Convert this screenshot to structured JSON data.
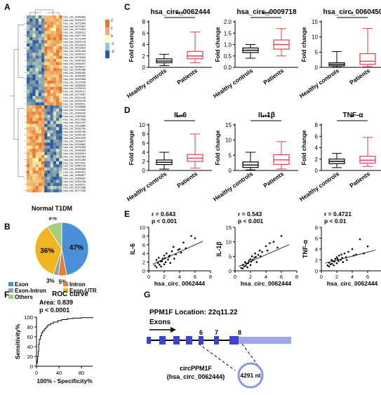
{
  "panels": {
    "A": {
      "label": "A",
      "rows": [
        "hsa_circ_0045482",
        "hsa_circ_0026474",
        "hsa_circ_0072549",
        "hsa_circ_0072387",
        "hsa_circ_0073340",
        "hsa_circ_0035012",
        "hsa_circ_0007760",
        "hsa_circ_0072444",
        "hsa_circ_0009718",
        "hsa_circ_0024876",
        "hsa_circ_0013422",
        "hsa_circ_0062444",
        "hsa_circ_0000231",
        "hsa_circ_0078549",
        "hsa_circ_0000324",
        "hsa_circ_0064457",
        "hsa_circ_0008127",
        "hsa_circ_0000186",
        "hsa_circ_0066450",
        "hsa_circ_0006455",
        "hsa_circ_0002565",
        "hsa_circ_0012208",
        "hsa_circ_0066828",
        "hsa_circ_0026191",
        "hsa_circ_0004127",
        "hsa_circ_0073067",
        "hsa_circ_0097105",
        "hsa_circ_0005130",
        "hsa_circ_0006511",
        "hsa_circ_0034868",
        "hsa_circ_0043469",
        "hsa_circ_0068702",
        "hsa_circ_0080826",
        "hsa_circ_0017556",
        "hsa_circ_0044767",
        "hsa_circ_0023669",
        "hsa_circ_0032759",
        "hsa_circ_0098765",
        "hsa_circ_0048736",
        "hsa_circ_0062250",
        "hsa_circ_0009870",
        "hsa_circ_0099862",
        "hsa_circ_0035409",
        "hsa_circ_0006345",
        "hsa_circ_0048301",
        "hsa_circ_0062784",
        "hsa_circ_0092285",
        "hsa_circ_0017637",
        "hsa_circ_0060125",
        "hsa_circ_0084566",
        "hsa_circ_0065321",
        "hsa_circ_0056827",
        "hsa_circ_0088087",
        "hsa_circ_0054236",
        "hsa_circ_0026371",
        "hsa_circ_0012286",
        "hsa_circ_0077300"
      ],
      "scale": [
        "2",
        "1",
        "0",
        "-1",
        "-2"
      ],
      "footer": "Normal T1DM",
      "colors": {
        "high": "#e8772e",
        "mid": "#ffffbf",
        "low": "#2c5aa0"
      }
    },
    "B": {
      "label": "B",
      "slices": [
        {
          "name": "Exon",
          "pct": 47,
          "label": "47%",
          "color": "#4a90d9"
        },
        {
          "name": "Intron",
          "pct": 5,
          "label": "5%",
          "color": "#e2803a"
        },
        {
          "name": "Exon-Intron",
          "pct": 3,
          "label": "3%",
          "color": "#8aa0b0"
        },
        {
          "name": "Exon-UTR",
          "pct": 36,
          "label": "36%",
          "color": "#f2b522"
        },
        {
          "name": "Others",
          "pct": 9,
          "label": "9%",
          "color": "#a5cd7e"
        }
      ]
    },
    "C": {
      "label": "C",
      "ylabel": "Fold change",
      "xcats": [
        "Healthy controls",
        "Patients"
      ],
      "plots": [
        {
          "title": "hsa_circ_0062444",
          "sig": "***",
          "yticks": [
            "0",
            "2",
            "4",
            "6",
            "8"
          ],
          "ymax": 8,
          "healthy": {
            "min": 0.3,
            "q1": 0.8,
            "med": 1.1,
            "q3": 1.5,
            "max": 2.3
          },
          "patients": {
            "min": 0.8,
            "q1": 1.5,
            "med": 2.0,
            "q3": 2.8,
            "max": 6.2
          }
        },
        {
          "title": "hsa_circ_0009718",
          "sig": "***",
          "yticks": [
            "0.0",
            "0.5",
            "1.0",
            "1.5",
            "2.0"
          ],
          "ymax": 2,
          "healthy": {
            "min": 0.4,
            "q1": 0.65,
            "med": 0.75,
            "q3": 0.85,
            "max": 1.0
          },
          "patients": {
            "min": 0.5,
            "q1": 0.8,
            "med": 1.0,
            "q3": 1.2,
            "max": 1.7
          }
        },
        {
          "title": "hsa_circ_0060450",
          "sig": "*",
          "yticks": [
            "0",
            "5",
            "10",
            "15"
          ],
          "ymax": 15,
          "healthy": {
            "min": 0.1,
            "q1": 0.5,
            "med": 1.0,
            "q3": 1.5,
            "max": 5.2
          },
          "patients": {
            "min": 0.2,
            "q1": 1.0,
            "med": 2.0,
            "q3": 4.5,
            "max": 12.8
          }
        }
      ]
    },
    "D": {
      "label": "D",
      "ylabel": "Fold change",
      "xcats": [
        "Healthy controls",
        "Patients"
      ],
      "plots": [
        {
          "title": "IL-6",
          "sig": "***",
          "yticks": [
            "0",
            "2",
            "4",
            "6",
            "8",
            "10"
          ],
          "ymax": 10,
          "healthy": {
            "min": 0.3,
            "q1": 1.3,
            "med": 1.8,
            "q3": 2.3,
            "max": 4.0
          },
          "patients": {
            "min": 0.5,
            "q1": 2.0,
            "med": 2.7,
            "q3": 3.5,
            "max": 8.0
          }
        },
        {
          "title": "IL-1β",
          "sig": "***",
          "yticks": [
            "0",
            "5",
            "10",
            "15"
          ],
          "ymax": 15,
          "healthy": {
            "min": 0.2,
            "q1": 1.0,
            "med": 1.8,
            "q3": 2.8,
            "max": 6.0
          },
          "patients": {
            "min": 0.5,
            "q1": 2.0,
            "med": 3.5,
            "q3": 5.2,
            "max": 9.5
          }
        },
        {
          "title": "TNF-α",
          "sig": "*",
          "yticks": [
            "0",
            "2",
            "4",
            "6",
            "8"
          ],
          "ymax": 8,
          "healthy": {
            "min": 0.5,
            "q1": 1.2,
            "med": 1.6,
            "q3": 2.0,
            "max": 3.0
          },
          "patients": {
            "min": 0.7,
            "q1": 1.3,
            "med": 1.8,
            "q3": 2.5,
            "max": 5.8
          }
        }
      ]
    },
    "E": {
      "label": "E",
      "xlabel": "hsa_circ_0062444",
      "plots": [
        {
          "ylabel": "IL-6",
          "r": "r = 0.643",
          "p": "p < 0.001",
          "xticks": [
            "0",
            "2",
            "4",
            "6",
            "8"
          ],
          "xmax": 8,
          "yticks": [
            "0",
            "2",
            "4",
            "6",
            "8",
            "10"
          ],
          "ymax": 10,
          "line": [
            [
              0.5,
              1.5
            ],
            [
              7,
              6.8
            ]
          ],
          "points": [
            [
              0.8,
              1.2
            ],
            [
              1,
              2.5
            ],
            [
              1.2,
              1.8
            ],
            [
              1.3,
              3.0
            ],
            [
              1.5,
              2.2
            ],
            [
              1.6,
              1.0
            ],
            [
              1.8,
              2.8
            ],
            [
              2,
              3.5
            ],
            [
              2,
              1.5
            ],
            [
              2.2,
              2.0
            ],
            [
              2.3,
              4.0
            ],
            [
              2.5,
              2.6
            ],
            [
              2.6,
              3.2
            ],
            [
              2.8,
              1.8
            ],
            [
              3,
              4.5
            ],
            [
              3.2,
              5.5
            ],
            [
              3.5,
              3.8
            ],
            [
              4,
              5.0
            ],
            [
              4.2,
              4.2
            ],
            [
              4.5,
              6.5
            ],
            [
              4.8,
              5.2
            ],
            [
              5.5,
              8.0
            ],
            [
              6,
              7.5
            ],
            [
              1,
              0.8
            ],
            [
              1.4,
              1.4
            ],
            [
              1.7,
              2.2
            ],
            [
              2.1,
              2.9
            ],
            [
              2.7,
              3.5
            ],
            [
              3.3,
              2.8
            ],
            [
              3.8,
              4.8
            ]
          ]
        },
        {
          "ylabel": "IL-1β",
          "r": "r = 0.543",
          "p": "p < 0.001",
          "xticks": [
            "0",
            "2",
            "4",
            "6",
            "8"
          ],
          "xmax": 8,
          "yticks": [
            "0",
            "5",
            "10",
            "15"
          ],
          "ymax": 15,
          "line": [
            [
              0.5,
              1.5
            ],
            [
              7,
              9.0
            ]
          ],
          "points": [
            [
              0.8,
              1.0
            ],
            [
              1,
              2.0
            ],
            [
              1.2,
              1.5
            ],
            [
              1.3,
              3.0
            ],
            [
              1.5,
              2.5
            ],
            [
              1.6,
              1.2
            ],
            [
              1.8,
              3.5
            ],
            [
              2,
              4.0
            ],
            [
              2,
              2.0
            ],
            [
              2.2,
              5.0
            ],
            [
              2.3,
              3.8
            ],
            [
              2.5,
              4.5
            ],
            [
              2.6,
              6.0
            ],
            [
              2.8,
              3.0
            ],
            [
              3,
              5.5
            ],
            [
              3.2,
              7.0
            ],
            [
              3.5,
              6.5
            ],
            [
              4,
              8.5
            ],
            [
              4.2,
              7.0
            ],
            [
              4.5,
              9.5
            ],
            [
              5,
              10.0
            ],
            [
              5.5,
              8.0
            ],
            [
              6,
              12.0
            ],
            [
              1,
              0.8
            ],
            [
              1.4,
              1.8
            ],
            [
              1.7,
              2.7
            ],
            [
              2.1,
              3.2
            ],
            [
              2.7,
              4.8
            ],
            [
              3.3,
              5.0
            ]
          ]
        },
        {
          "ylabel": "TNF-α",
          "r": "r = 0.4721",
          "p": "p < 0.01",
          "xticks": [
            "0",
            "2",
            "4",
            "6",
            "8"
          ],
          "xmax": 8,
          "yticks": [
            "0",
            "2",
            "4",
            "6",
            "8"
          ],
          "ymax": 8,
          "line": [
            [
              0.5,
              1.4
            ],
            [
              7,
              3.8
            ]
          ],
          "points": [
            [
              0.8,
              1.0
            ],
            [
              1,
              1.5
            ],
            [
              1.2,
              1.2
            ],
            [
              1.3,
              2.0
            ],
            [
              1.5,
              1.8
            ],
            [
              1.6,
              1.0
            ],
            [
              1.8,
              2.2
            ],
            [
              2,
              2.5
            ],
            [
              2,
              1.4
            ],
            [
              2.2,
              1.8
            ],
            [
              2.3,
              2.8
            ],
            [
              2.5,
              2.0
            ],
            [
              2.6,
              3.0
            ],
            [
              2.8,
              1.6
            ],
            [
              3,
              3.2
            ],
            [
              3.2,
              2.5
            ],
            [
              3.5,
              3.5
            ],
            [
              4,
              4.0
            ],
            [
              4.2,
              2.8
            ],
            [
              4.5,
              3.0
            ],
            [
              5,
              5.8
            ],
            [
              5.5,
              3.2
            ],
            [
              6,
              4.5
            ],
            [
              1,
              0.8
            ],
            [
              1.4,
              1.3
            ],
            [
              1.7,
              1.7
            ],
            [
              2.1,
              2.2
            ],
            [
              2.7,
              2.4
            ],
            [
              3.3,
              2.0
            ]
          ]
        }
      ]
    },
    "F": {
      "label": "F",
      "title": "ROC curve",
      "area": "Area: 0.839",
      "p": "p < 0.0001",
      "ylabel": "Sensitivity%",
      "xlabel": "100% - Specificity%",
      "xticks": [
        "0",
        "20",
        "40",
        "60",
        "80",
        "100"
      ],
      "yticks": [
        "0",
        "20",
        "40",
        "60",
        "80",
        "100"
      ],
      "curve": [
        [
          0,
          0
        ],
        [
          0,
          5
        ],
        [
          1,
          10
        ],
        [
          2,
          20
        ],
        [
          3,
          30
        ],
        [
          4,
          45
        ],
        [
          5,
          55
        ],
        [
          7,
          62
        ],
        [
          9,
          68
        ],
        [
          11,
          72
        ],
        [
          14,
          76
        ],
        [
          17,
          80
        ],
        [
          20,
          84
        ],
        [
          25,
          87
        ],
        [
          30,
          90
        ],
        [
          38,
          93
        ],
        [
          45,
          95
        ],
        [
          55,
          97
        ],
        [
          65,
          98
        ],
        [
          80,
          99
        ],
        [
          100,
          100
        ]
      ]
    },
    "G": {
      "label": "G",
      "location": "PPM1F Location: 22q11.22",
      "exons_label": "Exons",
      "exon_numbers": [
        "6",
        "7",
        "8"
      ],
      "circ_name": "circPPM1F",
      "circ_id": "(hsa_circ_0062444)",
      "length": "4291 nt"
    }
  }
}
